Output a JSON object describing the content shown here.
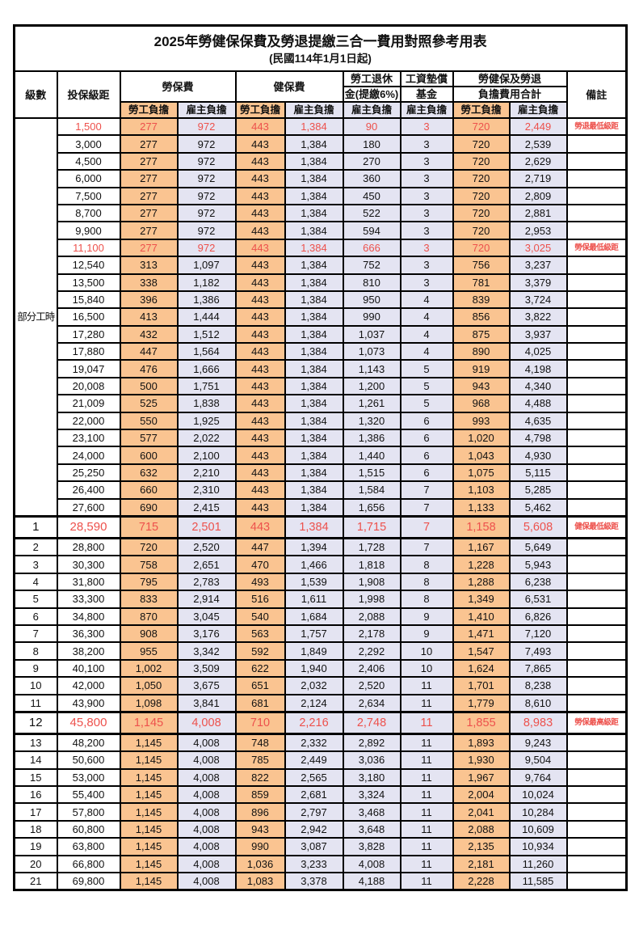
{
  "page": {
    "title": "2025年勞健保保費及勞退提繳三合一費用對照參考用表",
    "subtitle": "(民國114年1月1日起)"
  },
  "columns": {
    "level": "級數",
    "bracket": "投保級距",
    "labor_insurance": "勞保費",
    "health_insurance": "健保費",
    "pension_line1": "勞工退休",
    "pension_line2": "金(提繳6%)",
    "wage_fund_line1": "工資墊償",
    "wage_fund_line2": "基金",
    "total_line1": "勞健保及勞退",
    "total_line2": "負擔費用合計",
    "remark": "備註",
    "employee_share": "勞工負擔",
    "employer_share": "雇主負擔"
  },
  "part_time_label": "部分工時",
  "part_time_rowspan": 23,
  "colors": {
    "employee_bg": "#FAC491",
    "employer_bg": "#E4E4F2",
    "highlight_red": "#ED514C",
    "border": "#000000"
  },
  "rows": [
    {
      "level": "",
      "bracket": "1,500",
      "li_emp": "277",
      "li_er": "972",
      "hi_emp": "443",
      "hi_er": "1,384",
      "pen": "90",
      "fund": "3",
      "sum_emp": "720",
      "sum_er": "2,449",
      "remark": "勞退最低級距",
      "red": true,
      "big": false
    },
    {
      "level": "",
      "bracket": "3,000",
      "li_emp": "277",
      "li_er": "972",
      "hi_emp": "443",
      "hi_er": "1,384",
      "pen": "180",
      "fund": "3",
      "sum_emp": "720",
      "sum_er": "2,539",
      "remark": "",
      "red": false,
      "big": false
    },
    {
      "level": "",
      "bracket": "4,500",
      "li_emp": "277",
      "li_er": "972",
      "hi_emp": "443",
      "hi_er": "1,384",
      "pen": "270",
      "fund": "3",
      "sum_emp": "720",
      "sum_er": "2,629",
      "remark": "",
      "red": false,
      "big": false
    },
    {
      "level": "",
      "bracket": "6,000",
      "li_emp": "277",
      "li_er": "972",
      "hi_emp": "443",
      "hi_er": "1,384",
      "pen": "360",
      "fund": "3",
      "sum_emp": "720",
      "sum_er": "2,719",
      "remark": "",
      "red": false,
      "big": false
    },
    {
      "level": "",
      "bracket": "7,500",
      "li_emp": "277",
      "li_er": "972",
      "hi_emp": "443",
      "hi_er": "1,384",
      "pen": "450",
      "fund": "3",
      "sum_emp": "720",
      "sum_er": "2,809",
      "remark": "",
      "red": false,
      "big": false
    },
    {
      "level": "",
      "bracket": "8,700",
      "li_emp": "277",
      "li_er": "972",
      "hi_emp": "443",
      "hi_er": "1,384",
      "pen": "522",
      "fund": "3",
      "sum_emp": "720",
      "sum_er": "2,881",
      "remark": "",
      "red": false,
      "big": false
    },
    {
      "level": "",
      "bracket": "9,900",
      "li_emp": "277",
      "li_er": "972",
      "hi_emp": "443",
      "hi_er": "1,384",
      "pen": "594",
      "fund": "3",
      "sum_emp": "720",
      "sum_er": "2,953",
      "remark": "",
      "red": false,
      "big": false
    },
    {
      "level": "",
      "bracket": "11,100",
      "li_emp": "277",
      "li_er": "972",
      "hi_emp": "443",
      "hi_er": "1,384",
      "pen": "666",
      "fund": "3",
      "sum_emp": "720",
      "sum_er": "3,025",
      "remark": "勞保最低級距",
      "red": true,
      "big": false
    },
    {
      "level": "",
      "bracket": "12,540",
      "li_emp": "313",
      "li_er": "1,097",
      "hi_emp": "443",
      "hi_er": "1,384",
      "pen": "752",
      "fund": "3",
      "sum_emp": "756",
      "sum_er": "3,237",
      "remark": "",
      "red": false,
      "big": false
    },
    {
      "level": "",
      "bracket": "13,500",
      "li_emp": "338",
      "li_er": "1,182",
      "hi_emp": "443",
      "hi_er": "1,384",
      "pen": "810",
      "fund": "3",
      "sum_emp": "781",
      "sum_er": "3,379",
      "remark": "",
      "red": false,
      "big": false
    },
    {
      "level": "",
      "bracket": "15,840",
      "li_emp": "396",
      "li_er": "1,386",
      "hi_emp": "443",
      "hi_er": "1,384",
      "pen": "950",
      "fund": "4",
      "sum_emp": "839",
      "sum_er": "3,724",
      "remark": "",
      "red": false,
      "big": false
    },
    {
      "level": "",
      "bracket": "16,500",
      "li_emp": "413",
      "li_er": "1,444",
      "hi_emp": "443",
      "hi_er": "1,384",
      "pen": "990",
      "fund": "4",
      "sum_emp": "856",
      "sum_er": "3,822",
      "remark": "",
      "red": false,
      "big": false
    },
    {
      "level": "",
      "bracket": "17,280",
      "li_emp": "432",
      "li_er": "1,512",
      "hi_emp": "443",
      "hi_er": "1,384",
      "pen": "1,037",
      "fund": "4",
      "sum_emp": "875",
      "sum_er": "3,937",
      "remark": "",
      "red": false,
      "big": false
    },
    {
      "level": "",
      "bracket": "17,880",
      "li_emp": "447",
      "li_er": "1,564",
      "hi_emp": "443",
      "hi_er": "1,384",
      "pen": "1,073",
      "fund": "4",
      "sum_emp": "890",
      "sum_er": "4,025",
      "remark": "",
      "red": false,
      "big": false
    },
    {
      "level": "",
      "bracket": "19,047",
      "li_emp": "476",
      "li_er": "1,666",
      "hi_emp": "443",
      "hi_er": "1,384",
      "pen": "1,143",
      "fund": "5",
      "sum_emp": "919",
      "sum_er": "4,198",
      "remark": "",
      "red": false,
      "big": false
    },
    {
      "level": "",
      "bracket": "20,008",
      "li_emp": "500",
      "li_er": "1,751",
      "hi_emp": "443",
      "hi_er": "1,384",
      "pen": "1,200",
      "fund": "5",
      "sum_emp": "943",
      "sum_er": "4,340",
      "remark": "",
      "red": false,
      "big": false
    },
    {
      "level": "",
      "bracket": "21,009",
      "li_emp": "525",
      "li_er": "1,838",
      "hi_emp": "443",
      "hi_er": "1,384",
      "pen": "1,261",
      "fund": "5",
      "sum_emp": "968",
      "sum_er": "4,488",
      "remark": "",
      "red": false,
      "big": false
    },
    {
      "level": "",
      "bracket": "22,000",
      "li_emp": "550",
      "li_er": "1,925",
      "hi_emp": "443",
      "hi_er": "1,384",
      "pen": "1,320",
      "fund": "6",
      "sum_emp": "993",
      "sum_er": "4,635",
      "remark": "",
      "red": false,
      "big": false
    },
    {
      "level": "",
      "bracket": "23,100",
      "li_emp": "577",
      "li_er": "2,022",
      "hi_emp": "443",
      "hi_er": "1,384",
      "pen": "1,386",
      "fund": "6",
      "sum_emp": "1,020",
      "sum_er": "4,798",
      "remark": "",
      "red": false,
      "big": false
    },
    {
      "level": "",
      "bracket": "24,000",
      "li_emp": "600",
      "li_er": "2,100",
      "hi_emp": "443",
      "hi_er": "1,384",
      "pen": "1,440",
      "fund": "6",
      "sum_emp": "1,043",
      "sum_er": "4,930",
      "remark": "",
      "red": false,
      "big": false
    },
    {
      "level": "",
      "bracket": "25,250",
      "li_emp": "632",
      "li_er": "2,210",
      "hi_emp": "443",
      "hi_er": "1,384",
      "pen": "1,515",
      "fund": "6",
      "sum_emp": "1,075",
      "sum_er": "5,115",
      "remark": "",
      "red": false,
      "big": false
    },
    {
      "level": "",
      "bracket": "26,400",
      "li_emp": "660",
      "li_er": "2,310",
      "hi_emp": "443",
      "hi_er": "1,384",
      "pen": "1,584",
      "fund": "7",
      "sum_emp": "1,103",
      "sum_er": "5,285",
      "remark": "",
      "red": false,
      "big": false
    },
    {
      "level": "",
      "bracket": "27,600",
      "li_emp": "690",
      "li_er": "2,415",
      "hi_emp": "443",
      "hi_er": "1,384",
      "pen": "1,656",
      "fund": "7",
      "sum_emp": "1,133",
      "sum_er": "5,462",
      "remark": "",
      "red": false,
      "big": false
    },
    {
      "level": "1",
      "bracket": "28,590",
      "li_emp": "715",
      "li_er": "2,501",
      "hi_emp": "443",
      "hi_er": "1,384",
      "pen": "1,715",
      "fund": "7",
      "sum_emp": "1,158",
      "sum_er": "5,608",
      "remark": "健保最低級距",
      "red": true,
      "big": true
    },
    {
      "level": "2",
      "bracket": "28,800",
      "li_emp": "720",
      "li_er": "2,520",
      "hi_emp": "447",
      "hi_er": "1,394",
      "pen": "1,728",
      "fund": "7",
      "sum_emp": "1,167",
      "sum_er": "5,649",
      "remark": "",
      "red": false,
      "big": false
    },
    {
      "level": "3",
      "bracket": "30,300",
      "li_emp": "758",
      "li_er": "2,651",
      "hi_emp": "470",
      "hi_er": "1,466",
      "pen": "1,818",
      "fund": "8",
      "sum_emp": "1,228",
      "sum_er": "5,943",
      "remark": "",
      "red": false,
      "big": false
    },
    {
      "level": "4",
      "bracket": "31,800",
      "li_emp": "795",
      "li_er": "2,783",
      "hi_emp": "493",
      "hi_er": "1,539",
      "pen": "1,908",
      "fund": "8",
      "sum_emp": "1,288",
      "sum_er": "6,238",
      "remark": "",
      "red": false,
      "big": false
    },
    {
      "level": "5",
      "bracket": "33,300",
      "li_emp": "833",
      "li_er": "2,914",
      "hi_emp": "516",
      "hi_er": "1,611",
      "pen": "1,998",
      "fund": "8",
      "sum_emp": "1,349",
      "sum_er": "6,531",
      "remark": "",
      "red": false,
      "big": false
    },
    {
      "level": "6",
      "bracket": "34,800",
      "li_emp": "870",
      "li_er": "3,045",
      "hi_emp": "540",
      "hi_er": "1,684",
      "pen": "2,088",
      "fund": "9",
      "sum_emp": "1,410",
      "sum_er": "6,826",
      "remark": "",
      "red": false,
      "big": false
    },
    {
      "level": "7",
      "bracket": "36,300",
      "li_emp": "908",
      "li_er": "3,176",
      "hi_emp": "563",
      "hi_er": "1,757",
      "pen": "2,178",
      "fund": "9",
      "sum_emp": "1,471",
      "sum_er": "7,120",
      "remark": "",
      "red": false,
      "big": false
    },
    {
      "level": "8",
      "bracket": "38,200",
      "li_emp": "955",
      "li_er": "3,342",
      "hi_emp": "592",
      "hi_er": "1,849",
      "pen": "2,292",
      "fund": "10",
      "sum_emp": "1,547",
      "sum_er": "7,493",
      "remark": "",
      "red": false,
      "big": false
    },
    {
      "level": "9",
      "bracket": "40,100",
      "li_emp": "1,002",
      "li_er": "3,509",
      "hi_emp": "622",
      "hi_er": "1,940",
      "pen": "2,406",
      "fund": "10",
      "sum_emp": "1,624",
      "sum_er": "7,865",
      "remark": "",
      "red": false,
      "big": false
    },
    {
      "level": "10",
      "bracket": "42,000",
      "li_emp": "1,050",
      "li_er": "3,675",
      "hi_emp": "651",
      "hi_er": "2,032",
      "pen": "2,520",
      "fund": "11",
      "sum_emp": "1,701",
      "sum_er": "8,238",
      "remark": "",
      "red": false,
      "big": false
    },
    {
      "level": "11",
      "bracket": "43,900",
      "li_emp": "1,098",
      "li_er": "3,841",
      "hi_emp": "681",
      "hi_er": "2,124",
      "pen": "2,634",
      "fund": "11",
      "sum_emp": "1,779",
      "sum_er": "8,610",
      "remark": "",
      "red": false,
      "big": false
    },
    {
      "level": "12",
      "bracket": "45,800",
      "li_emp": "1,145",
      "li_er": "4,008",
      "hi_emp": "710",
      "hi_er": "2,216",
      "pen": "2,748",
      "fund": "11",
      "sum_emp": "1,855",
      "sum_er": "8,983",
      "remark": "勞保最高級距",
      "red": true,
      "big": true
    },
    {
      "level": "13",
      "bracket": "48,200",
      "li_emp": "1,145",
      "li_er": "4,008",
      "hi_emp": "748",
      "hi_er": "2,332",
      "pen": "2,892",
      "fund": "11",
      "sum_emp": "1,893",
      "sum_er": "9,243",
      "remark": "",
      "red": false,
      "big": false
    },
    {
      "level": "14",
      "bracket": "50,600",
      "li_emp": "1,145",
      "li_er": "4,008",
      "hi_emp": "785",
      "hi_er": "2,449",
      "pen": "3,036",
      "fund": "11",
      "sum_emp": "1,930",
      "sum_er": "9,504",
      "remark": "",
      "red": false,
      "big": false
    },
    {
      "level": "15",
      "bracket": "53,000",
      "li_emp": "1,145",
      "li_er": "4,008",
      "hi_emp": "822",
      "hi_er": "2,565",
      "pen": "3,180",
      "fund": "11",
      "sum_emp": "1,967",
      "sum_er": "9,764",
      "remark": "",
      "red": false,
      "big": false
    },
    {
      "level": "16",
      "bracket": "55,400",
      "li_emp": "1,145",
      "li_er": "4,008",
      "hi_emp": "859",
      "hi_er": "2,681",
      "pen": "3,324",
      "fund": "11",
      "sum_emp": "2,004",
      "sum_er": "10,024",
      "remark": "",
      "red": false,
      "big": false
    },
    {
      "level": "17",
      "bracket": "57,800",
      "li_emp": "1,145",
      "li_er": "4,008",
      "hi_emp": "896",
      "hi_er": "2,797",
      "pen": "3,468",
      "fund": "11",
      "sum_emp": "2,041",
      "sum_er": "10,284",
      "remark": "",
      "red": false,
      "big": false
    },
    {
      "level": "18",
      "bracket": "60,800",
      "li_emp": "1,145",
      "li_er": "4,008",
      "hi_emp": "943",
      "hi_er": "2,942",
      "pen": "3,648",
      "fund": "11",
      "sum_emp": "2,088",
      "sum_er": "10,609",
      "remark": "",
      "red": false,
      "big": false
    },
    {
      "level": "19",
      "bracket": "63,800",
      "li_emp": "1,145",
      "li_er": "4,008",
      "hi_emp": "990",
      "hi_er": "3,087",
      "pen": "3,828",
      "fund": "11",
      "sum_emp": "2,135",
      "sum_er": "10,934",
      "remark": "",
      "red": false,
      "big": false
    },
    {
      "level": "20",
      "bracket": "66,800",
      "li_emp": "1,145",
      "li_er": "4,008",
      "hi_emp": "1,036",
      "hi_er": "3,233",
      "pen": "4,008",
      "fund": "11",
      "sum_emp": "2,181",
      "sum_er": "11,260",
      "remark": "",
      "red": false,
      "big": false
    },
    {
      "level": "21",
      "bracket": "69,800",
      "li_emp": "1,145",
      "li_er": "4,008",
      "hi_emp": "1,083",
      "hi_er": "3,378",
      "pen": "4,188",
      "fund": "11",
      "sum_emp": "2,228",
      "sum_er": "11,585",
      "remark": "",
      "red": false,
      "big": false
    }
  ]
}
